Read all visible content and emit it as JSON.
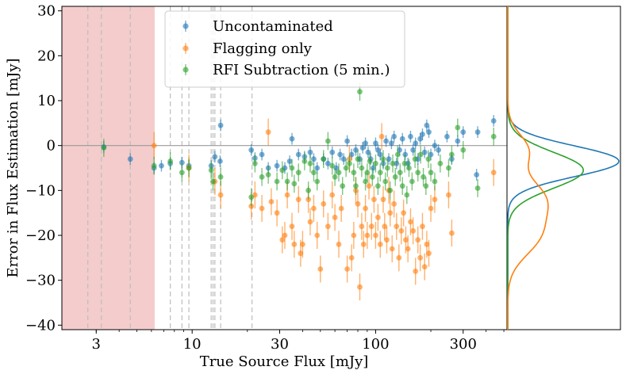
{
  "chart_data": {
    "type": "scatter",
    "xlabel": "True Source Flux [mJy]",
    "ylabel": "Error in Flux Estimation [mJy]",
    "xscale": "log",
    "xlim": [
      1.95,
      520
    ],
    "ylim": [
      -41,
      31
    ],
    "xticks": [
      3,
      10,
      30,
      100,
      300
    ],
    "yticks": [
      -40,
      -30,
      -20,
      -10,
      0,
      10,
      20,
      30
    ],
    "shaded_region": {
      "x_from": 1.95,
      "x_to": 6.25,
      "color": "#f4cccc"
    },
    "vertical_lines": [
      2.7,
      3.2,
      4.6,
      7.6,
      8.8,
      9.6,
      12.7,
      13.0,
      13.3,
      14.3,
      21.2
    ],
    "horizontal_line": 0,
    "legend": {
      "position": "top-center",
      "entries": [
        "Uncontaminated",
        "Flagging only",
        "RFI Subtraction (5 min.)"
      ]
    },
    "series": [
      {
        "name": "Uncontaminated",
        "color": "#1f77b4",
        "points": [
          [
            3.3,
            -0.3
          ],
          [
            4.6,
            -3.0
          ],
          [
            6.2,
            -5.0
          ],
          [
            6.8,
            -4.5
          ],
          [
            7.6,
            -4.0
          ],
          [
            8.8,
            -3.8
          ],
          [
            9.6,
            -4.5
          ],
          [
            12.7,
            -4.5
          ],
          [
            13.3,
            -2.5
          ],
          [
            14.3,
            4.5
          ],
          [
            14.2,
            -3.5
          ],
          [
            21,
            -1.0
          ],
          [
            22,
            -2.8
          ],
          [
            24,
            -2.0
          ],
          [
            26,
            -5.0
          ],
          [
            29,
            -4.5
          ],
          [
            32,
            -5.0
          ],
          [
            34,
            -3.5
          ],
          [
            35,
            1.5
          ],
          [
            38,
            -2.0
          ],
          [
            41,
            -2.5
          ],
          [
            44,
            -1.5
          ],
          [
            46,
            -3.0
          ],
          [
            48,
            -5.0
          ],
          [
            52,
            -3.0
          ],
          [
            55,
            -4.0
          ],
          [
            58,
            -1.5
          ],
          [
            61,
            -5.0
          ],
          [
            64,
            -2.0
          ],
          [
            67,
            -3.0
          ],
          [
            70,
            1.0
          ],
          [
            74,
            -2.0
          ],
          [
            78,
            -1.0
          ],
          [
            82,
            -3.0
          ],
          [
            85,
            -0.5
          ],
          [
            88,
            0.5
          ],
          [
            91,
            -1.5
          ],
          [
            94,
            -3.0
          ],
          [
            97,
            -5.0
          ],
          [
            100,
            0.5
          ],
          [
            103,
            -1.0
          ],
          [
            106,
            -2.0
          ],
          [
            110,
            -4.0
          ],
          [
            114,
            1.0
          ],
          [
            118,
            -3.0
          ],
          [
            122,
            0.5
          ],
          [
            126,
            2.0
          ],
          [
            130,
            -4.0
          ],
          [
            135,
            -1.0
          ],
          [
            140,
            1.5
          ],
          [
            145,
            -2.0
          ],
          [
            150,
            -4.0
          ],
          [
            155,
            2.0
          ],
          [
            160,
            -1.0
          ],
          [
            165,
            0.5
          ],
          [
            170,
            -3.0
          ],
          [
            175,
            1.5
          ],
          [
            180,
            2.5
          ],
          [
            185,
            -1.5
          ],
          [
            190,
            4.5
          ],
          [
            195,
            3.0
          ],
          [
            200,
            -2.0
          ],
          [
            210,
            0.0
          ],
          [
            220,
            -1.0
          ],
          [
            245,
            2.0
          ],
          [
            260,
            -3.0
          ],
          [
            280,
            1.0
          ],
          [
            300,
            3.0
          ],
          [
            355,
            -6.5
          ],
          [
            360,
            3.0
          ],
          [
            440,
            5.5
          ]
        ]
      },
      {
        "name": "Flagging only",
        "color": "#ff7f0e",
        "points": [
          [
            6.2,
            0.0
          ],
          [
            9.6,
            -5.0
          ],
          [
            13.3,
            -8.0
          ],
          [
            14.3,
            -11.0
          ],
          [
            21,
            -13.5
          ],
          [
            22,
            -11.0
          ],
          [
            24,
            -14.0
          ],
          [
            26,
            3.0
          ],
          [
            27,
            -12.5
          ],
          [
            29,
            -15.0
          ],
          [
            31,
            -21.0
          ],
          [
            32,
            -20.0
          ],
          [
            33,
            -11.0
          ],
          [
            35,
            -18.0
          ],
          [
            36,
            -22.0
          ],
          [
            38,
            -12.0
          ],
          [
            39,
            -24.0
          ],
          [
            40,
            -22.0
          ],
          [
            43,
            -12.0
          ],
          [
            44,
            -17.0
          ],
          [
            46,
            -14.0
          ],
          [
            48,
            -20.0
          ],
          [
            50,
            -27.5
          ],
          [
            52,
            -13.0
          ],
          [
            55,
            -18.0
          ],
          [
            58,
            -11.0
          ],
          [
            60,
            -16.0
          ],
          [
            63,
            -22.0
          ],
          [
            65,
            -14.0
          ],
          [
            70,
            -27.5
          ],
          [
            72,
            -3.0
          ],
          [
            74,
            -25.0
          ],
          [
            76,
            -20.0
          ],
          [
            78,
            -10.0
          ],
          [
            80,
            -13.0
          ],
          [
            82,
            -31.5
          ],
          [
            84,
            -18.0
          ],
          [
            86,
            -22.0
          ],
          [
            88,
            -14.0
          ],
          [
            90,
            -20.0
          ],
          [
            92,
            -9.0
          ],
          [
            95,
            -18.0
          ],
          [
            98,
            -12.0
          ],
          [
            100,
            -20.0
          ],
          [
            103,
            -16.0
          ],
          [
            106,
            -22.0
          ],
          [
            108,
            2.0
          ],
          [
            110,
            -12.0
          ],
          [
            112,
            -18.0
          ],
          [
            115,
            -21.0
          ],
          [
            118,
            -10.0
          ],
          [
            120,
            -15.0
          ],
          [
            123,
            -23.0
          ],
          [
            126,
            -13.0
          ],
          [
            130,
            -18.0
          ],
          [
            134,
            -25.0
          ],
          [
            138,
            -19.0
          ],
          [
            142,
            -15.0
          ],
          [
            146,
            -21.0
          ],
          [
            150,
            -23.0
          ],
          [
            155,
            -17.0
          ],
          [
            160,
            -19.0
          ],
          [
            165,
            -28.0
          ],
          [
            170,
            -21.0
          ],
          [
            175,
            -25.0
          ],
          [
            180,
            -18.0
          ],
          [
            185,
            -27.0
          ],
          [
            190,
            -22.0
          ],
          [
            195,
            -24.0
          ],
          [
            200,
            -14.0
          ],
          [
            210,
            -12.0
          ],
          [
            250,
            -11.0
          ],
          [
            260,
            -19.5
          ],
          [
            440,
            -6.0
          ]
        ]
      },
      {
        "name": "RFI Subtraction (5 min.)",
        "color": "#2ca02c",
        "points": [
          [
            3.3,
            -0.5
          ],
          [
            6.2,
            -4.5
          ],
          [
            7.6,
            -3.5
          ],
          [
            8.8,
            -6.0
          ],
          [
            9.6,
            -5.0
          ],
          [
            12.7,
            -5.5
          ],
          [
            13.0,
            -8.0
          ],
          [
            14.3,
            -7.0
          ],
          [
            21,
            -11.5
          ],
          [
            22,
            -4.0
          ],
          [
            24,
            -7.0
          ],
          [
            26,
            -6.5
          ],
          [
            29,
            -8.0
          ],
          [
            31,
            -5.5
          ],
          [
            33,
            -8.0
          ],
          [
            35,
            -5.0
          ],
          [
            36,
            -8.5
          ],
          [
            38,
            -6.0
          ],
          [
            41,
            -3.5
          ],
          [
            43,
            -10.0
          ],
          [
            44,
            -4.0
          ],
          [
            46,
            -6.0
          ],
          [
            48,
            -8.0
          ],
          [
            52,
            -3.0
          ],
          [
            55,
            1.0
          ],
          [
            58,
            -4.5
          ],
          [
            60,
            -7.0
          ],
          [
            63,
            -6.0
          ],
          [
            66,
            -9.0
          ],
          [
            69,
            -5.0
          ],
          [
            72,
            -4.0
          ],
          [
            76,
            -6.0
          ],
          [
            78,
            -9.0
          ],
          [
            80,
            -3.0
          ],
          [
            82,
            12.0
          ],
          [
            84,
            -5.0
          ],
          [
            88,
            -8.0
          ],
          [
            90,
            -6.0
          ],
          [
            93,
            -3.5
          ],
          [
            96,
            -7.0
          ],
          [
            100,
            -4.0
          ],
          [
            103,
            -9.0
          ],
          [
            106,
            -6.0
          ],
          [
            110,
            -3.0
          ],
          [
            113,
            -8.0
          ],
          [
            116,
            -5.0
          ],
          [
            120,
            -10.0
          ],
          [
            124,
            -4.0
          ],
          [
            128,
            -7.0
          ],
          [
            132,
            -2.0
          ],
          [
            136,
            -6.0
          ],
          [
            140,
            -9.0
          ],
          [
            144,
            -4.0
          ],
          [
            148,
            -11.0
          ],
          [
            152,
            -5.0
          ],
          [
            158,
            -8.0
          ],
          [
            164,
            -3.0
          ],
          [
            170,
            -6.0
          ],
          [
            176,
            -2.0
          ],
          [
            182,
            -7.0
          ],
          [
            188,
            -9.0
          ],
          [
            194,
            -3.0
          ],
          [
            200,
            -6.0
          ],
          [
            210,
            -8.0
          ],
          [
            225,
            -4.0
          ],
          [
            250,
            -5.0
          ],
          [
            260,
            -2.0
          ],
          [
            280,
            4.0
          ],
          [
            300,
            -1.0
          ],
          [
            360,
            -9.5
          ],
          [
            440,
            2.0
          ]
        ]
      }
    ],
    "side_panel": {
      "description": "marginal distributions of error (smoothed)",
      "curves": [
        {
          "name": "Uncontaminated",
          "color": "#1f77b4",
          "mean": -3.5,
          "sd": 3.4,
          "peak": 1.0
        },
        {
          "name": "RFI Subtraction (5 min.)",
          "color": "#2ca02c",
          "mean": -5.5,
          "sd": 4.0,
          "peak": 0.68
        },
        {
          "name": "Flagging only",
          "color": "#ff7f0e",
          "components": [
            {
              "mean": -11.5,
              "sd": 4.2,
              "peak": 0.3
            },
            {
              "mean": -20.0,
              "sd": 4.5,
              "peak": 0.27
            },
            {
              "mean": -1.0,
              "sd": 3.5,
              "peak": 0.18
            }
          ]
        }
      ]
    }
  }
}
